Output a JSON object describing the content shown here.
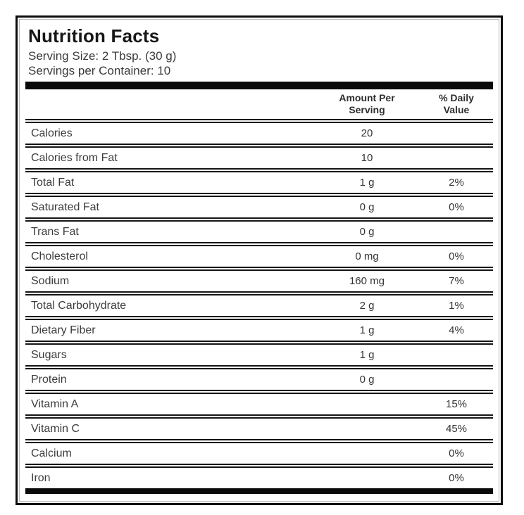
{
  "label": {
    "title": "Nutrition Facts",
    "serving_size": "Serving Size: 2 Tbsp. (30 g)",
    "servings_per_container": "Servings per Container: 10",
    "columns": {
      "amount": "Amount Per\nServing",
      "daily": "% Daily\nValue"
    },
    "rows": [
      {
        "name": "Calories",
        "amount": "20",
        "daily": ""
      },
      {
        "name": "Calories from Fat",
        "amount": "10",
        "daily": ""
      },
      {
        "name": "Total Fat",
        "amount": "1 g",
        "daily": "2%"
      },
      {
        "name": "Saturated Fat",
        "amount": "0 g",
        "daily": "0%"
      },
      {
        "name": "Trans Fat",
        "amount": "0 g",
        "daily": ""
      },
      {
        "name": "Cholesterol",
        "amount": "0 mg",
        "daily": "0%"
      },
      {
        "name": "Sodium",
        "amount": "160 mg",
        "daily": "7%"
      },
      {
        "name": "Total Carbohydrate",
        "amount": "2 g",
        "daily": "1%"
      },
      {
        "name": "Dietary Fiber",
        "amount": "1 g",
        "daily": "4%"
      },
      {
        "name": "Sugars",
        "amount": "1 g",
        "daily": ""
      },
      {
        "name": "Protein",
        "amount": "0 g",
        "daily": ""
      },
      {
        "name": "Vitamin A",
        "amount": "",
        "daily": "15%"
      },
      {
        "name": "Vitamin C",
        "amount": "",
        "daily": "45%"
      },
      {
        "name": "Calcium",
        "amount": "",
        "daily": "0%"
      },
      {
        "name": "Iron",
        "amount": "",
        "daily": "0%"
      }
    ],
    "colors": {
      "rule": "#141414",
      "text": "#3c3c3c",
      "title": "#171717"
    }
  }
}
